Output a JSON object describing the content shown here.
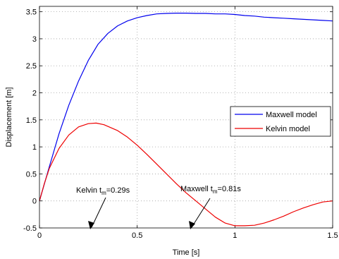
{
  "chart_data": {
    "type": "line",
    "xlabel": "Time [s]",
    "ylabel": "Displacement [m]",
    "xlim": [
      0,
      1.5
    ],
    "ylim": [
      -0.5,
      3.6
    ],
    "xticks": [
      0,
      0.5,
      1,
      1.5
    ],
    "xtick_labels": [
      "0",
      "0.5",
      "1",
      "1.5"
    ],
    "yticks": [
      -0.5,
      0,
      0.5,
      1,
      1.5,
      2,
      2.5,
      3,
      3.5
    ],
    "ytick_labels": [
      "-0.5",
      "0",
      "0.5",
      "1",
      "1.5",
      "2",
      "2.5",
      "3",
      "3.5"
    ],
    "grid": true,
    "legend_position": "right",
    "series": [
      {
        "name": "Maxwell model",
        "color": "#0000ee",
        "x": [
          0,
          0.05,
          0.1,
          0.15,
          0.2,
          0.25,
          0.3,
          0.35,
          0.4,
          0.45,
          0.5,
          0.55,
          0.6,
          0.65,
          0.7,
          0.75,
          0.8,
          0.85,
          0.9,
          0.95,
          1.0,
          1.05,
          1.1,
          1.15,
          1.2,
          1.25,
          1.3,
          1.35,
          1.4,
          1.45,
          1.5
        ],
        "y": [
          0,
          0.63,
          1.24,
          1.77,
          2.22,
          2.6,
          2.9,
          3.1,
          3.24,
          3.33,
          3.39,
          3.43,
          3.46,
          3.47,
          3.475,
          3.475,
          3.47,
          3.47,
          3.46,
          3.46,
          3.45,
          3.43,
          3.42,
          3.4,
          3.39,
          3.38,
          3.37,
          3.36,
          3.35,
          3.34,
          3.33
        ]
      },
      {
        "name": "Kelvin model",
        "color": "#ee0000",
        "x": [
          0,
          0.025,
          0.05,
          0.1,
          0.15,
          0.2,
          0.25,
          0.29,
          0.33,
          0.4,
          0.45,
          0.5,
          0.55,
          0.6,
          0.65,
          0.7,
          0.75,
          0.8,
          0.85,
          0.9,
          0.95,
          1.0,
          1.05,
          1.1,
          1.15,
          1.2,
          1.25,
          1.3,
          1.35,
          1.4,
          1.45,
          1.5
        ],
        "y": [
          0,
          0.32,
          0.6,
          0.97,
          1.22,
          1.37,
          1.43,
          1.44,
          1.41,
          1.3,
          1.18,
          1.03,
          0.86,
          0.68,
          0.5,
          0.32,
          0.15,
          0.0,
          -0.15,
          -0.3,
          -0.41,
          -0.46,
          -0.46,
          -0.45,
          -0.41,
          -0.35,
          -0.28,
          -0.2,
          -0.13,
          -0.07,
          -0.02,
          0.0
        ]
      }
    ],
    "annotations": [
      {
        "label": "Kelvin t",
        "sub": "m",
        "suffix": "=0.29s",
        "arrow_to": [
          0.25,
          -0.45
        ]
      },
      {
        "label": "Maxwell t",
        "sub": "m",
        "suffix": "=0.81s",
        "arrow_to": [
          0.75,
          -0.45
        ]
      }
    ]
  }
}
